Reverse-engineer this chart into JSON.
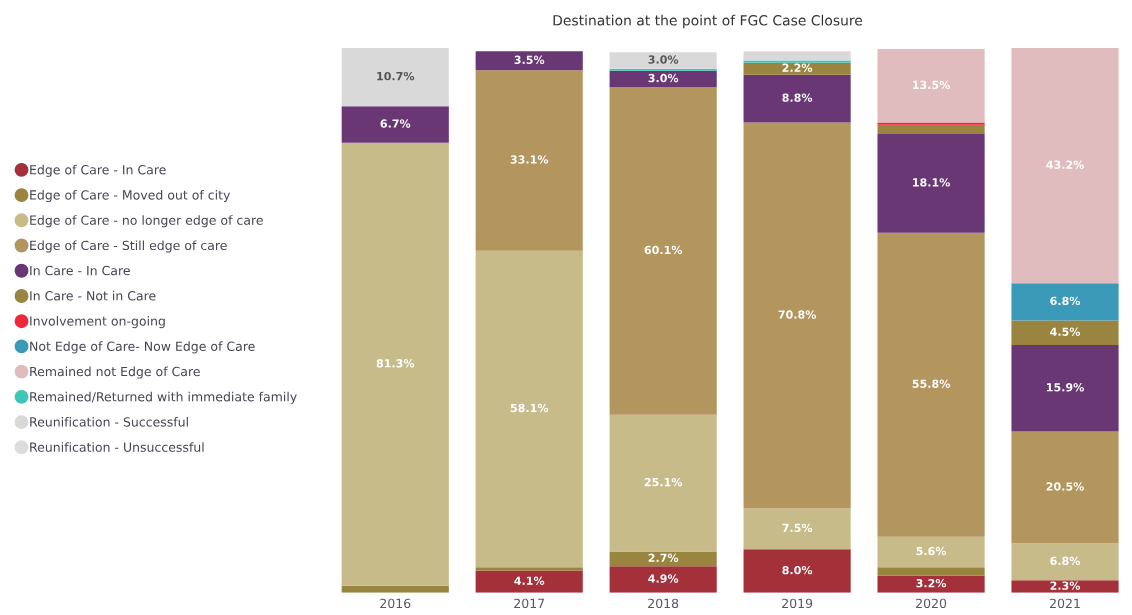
{
  "chart_data": {
    "type": "bar",
    "title": "Destination at the point of FGC Case Closure",
    "stacked": true,
    "legend": "left",
    "grid": false,
    "tick_labels": "x",
    "categories": [
      "2016",
      "2017",
      "2018",
      "2019",
      "2020",
      "2021"
    ],
    "series": [
      {
        "name": "Edge of Care - In Care",
        "color": "#a4303a",
        "values": [
          null,
          4.1,
          4.9,
          8.0,
          3.2,
          2.3
        ],
        "value_labels": [
          null,
          "4.1%",
          "4.9%",
          "8.0%",
          "3.2%",
          "2.3%"
        ]
      },
      {
        "name": "Edge of Care - Moved out of city",
        "color": "#9a8540",
        "values": [
          1.3,
          0.6,
          2.7,
          null,
          1.5,
          null
        ],
        "value_labels": [
          null,
          null,
          "2.7%",
          null,
          null,
          null
        ]
      },
      {
        "name": "Edge of Care - no longer edge of care",
        "color": "#c8bb8a",
        "values": [
          81.3,
          58.1,
          25.1,
          7.5,
          5.6,
          6.8
        ],
        "value_labels": [
          "81.3%",
          "58.1%",
          "25.1%",
          "7.5%",
          "5.6%",
          "6.8%"
        ]
      },
      {
        "name": "Edge of Care - Still edge of care",
        "color": "#b3955e",
        "values": [
          null,
          33.1,
          60.1,
          70.8,
          55.8,
          20.5
        ],
        "value_labels": [
          null,
          "33.1%",
          "60.1%",
          "70.8%",
          "55.8%",
          "20.5%"
        ]
      },
      {
        "name": "In Care - In Care",
        "color": "#6a3775",
        "values": [
          6.7,
          3.5,
          3.0,
          8.8,
          18.1,
          15.9
        ],
        "value_labels": [
          "6.7%",
          "3.5%",
          "3.0%",
          "8.8%",
          "18.1%",
          "15.9%"
        ]
      },
      {
        "name": "In Care - Not in Care",
        "color": "#9a8540",
        "values": [
          null,
          null,
          null,
          2.2,
          1.7,
          4.5
        ],
        "value_labels": [
          null,
          null,
          null,
          "2.2%",
          null,
          "4.5%"
        ]
      },
      {
        "name": "Involvement on-going",
        "color": "#f0263a",
        "values": [
          null,
          null,
          null,
          null,
          0.4,
          null
        ],
        "value_labels": [
          null,
          null,
          null,
          null,
          null,
          null
        ]
      },
      {
        "name": "Not Edge of Care- Now Edge of Care",
        "color": "#3a9ab8",
        "values": [
          null,
          null,
          null,
          null,
          null,
          6.8
        ],
        "value_labels": [
          null,
          null,
          null,
          null,
          null,
          "6.8%"
        ]
      },
      {
        "name": "Remained not Edge of Care",
        "color": "#e0bcbf",
        "values": [
          null,
          null,
          null,
          null,
          13.5,
          43.2
        ],
        "value_labels": [
          null,
          null,
          null,
          null,
          "13.5%",
          "43.2%"
        ]
      },
      {
        "name": "Remained/Returned with immediate family",
        "color": "#3fc7b5",
        "values": [
          null,
          null,
          0.4,
          0.4,
          null,
          null
        ],
        "value_labels": [
          null,
          null,
          null,
          null,
          null,
          null
        ]
      },
      {
        "name": "Reunification - Successful",
        "color": "#d9d9d9",
        "values": [
          10.7,
          null,
          3.0,
          1.7,
          null,
          null
        ],
        "value_labels": [
          "10.7%",
          null,
          "3.0%",
          null,
          null,
          null
        ]
      },
      {
        "name": "Reunification - Unsuccessful",
        "color": "#dcdcdc",
        "values": [
          null,
          null,
          null,
          null,
          null,
          null
        ],
        "value_labels": [
          null,
          null,
          null,
          null,
          null,
          null
        ]
      }
    ]
  }
}
